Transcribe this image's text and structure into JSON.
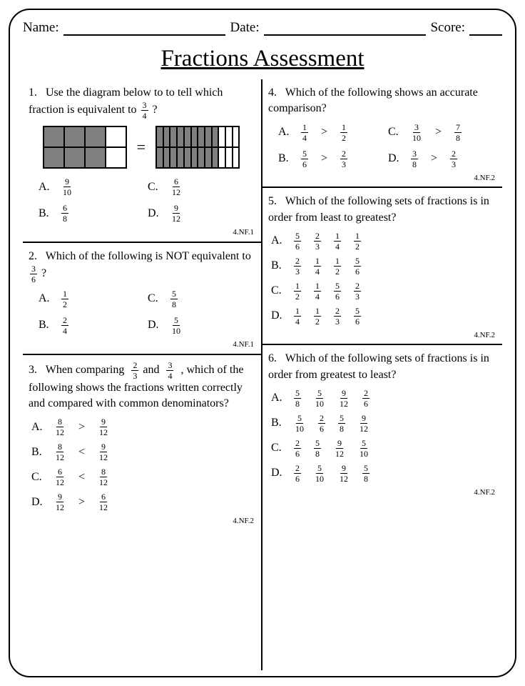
{
  "header": {
    "name": "Name:",
    "date": "Date:",
    "score": "Score:"
  },
  "title": "Fractions Assessment",
  "diagram": {
    "gridA": {
      "cols": 4,
      "rows": 2,
      "filled": [
        0,
        1,
        2,
        4,
        5,
        6
      ]
    },
    "gridB": {
      "cols": 12,
      "rows": 2,
      "filledCols": 9
    },
    "eq": "="
  },
  "questions": {
    "q1": {
      "num": "1.",
      "text": "Use the diagram below to to tell which fraction is equivalent to",
      "frac": {
        "n": "3",
        "d": "4"
      },
      "tail": "?",
      "standard": "4.NF.1",
      "opts": {
        "A": {
          "n": "9",
          "d": "10"
        },
        "C": {
          "n": "6",
          "d": "12"
        },
        "B": {
          "n": "6",
          "d": "8"
        },
        "D": {
          "n": "9",
          "d": "12"
        }
      }
    },
    "q2": {
      "num": "2.",
      "text": "Which of the following is NOT equivalent to",
      "frac": {
        "n": "3",
        "d": "6"
      },
      "tail": "?",
      "standard": "4.NF.1",
      "opts": {
        "A": {
          "n": "1",
          "d": "2"
        },
        "C": {
          "n": "5",
          "d": "8"
        },
        "B": {
          "n": "2",
          "d": "4"
        },
        "D": {
          "n": "5",
          "d": "10"
        }
      }
    },
    "q3": {
      "num": "3.",
      "pre": "When comparing",
      "f1": {
        "n": "2",
        "d": "3"
      },
      "mid": "and",
      "f2": {
        "n": "3",
        "d": "4"
      },
      "post": ", which of the following shows the fractions written correctly and compared with common denominators?",
      "standard": "4.NF.2",
      "opts": {
        "A": {
          "l": {
            "n": "8",
            "d": "12"
          },
          "s": ">",
          "r": {
            "n": "9",
            "d": "12"
          }
        },
        "B": {
          "l": {
            "n": "8",
            "d": "12"
          },
          "s": "<",
          "r": {
            "n": "9",
            "d": "12"
          }
        },
        "C": {
          "l": {
            "n": "6",
            "d": "12"
          },
          "s": "<",
          "r": {
            "n": "8",
            "d": "12"
          }
        },
        "D": {
          "l": {
            "n": "9",
            "d": "12"
          },
          "s": ">",
          "r": {
            "n": "6",
            "d": "12"
          }
        }
      }
    },
    "q4": {
      "num": "4.",
      "text": "Which of the following shows an accurate comparison?",
      "standard": "4.NF.2",
      "opts": {
        "A": {
          "l": {
            "n": "1",
            "d": "4"
          },
          "s": ">",
          "r": {
            "n": "1",
            "d": "2"
          }
        },
        "C": {
          "l": {
            "n": "3",
            "d": "10"
          },
          "s": ">",
          "r": {
            "n": "7",
            "d": "8"
          }
        },
        "B": {
          "l": {
            "n": "5",
            "d": "6"
          },
          "s": ">",
          "r": {
            "n": "2",
            "d": "3"
          }
        },
        "D": {
          "l": {
            "n": "3",
            "d": "8"
          },
          "s": ">",
          "r": {
            "n": "2",
            "d": "3"
          }
        }
      }
    },
    "q5": {
      "num": "5.",
      "text": "Which of the following sets of fractions is in order from least to greatest?",
      "standard": "4.NF.2",
      "opts": {
        "A": [
          {
            "n": "5",
            "d": "6"
          },
          {
            "n": "2",
            "d": "3"
          },
          {
            "n": "1",
            "d": "4"
          },
          {
            "n": "1",
            "d": "2"
          }
        ],
        "B": [
          {
            "n": "2",
            "d": "3"
          },
          {
            "n": "1",
            "d": "4"
          },
          {
            "n": "1",
            "d": "2"
          },
          {
            "n": "5",
            "d": "6"
          }
        ],
        "C": [
          {
            "n": "1",
            "d": "2"
          },
          {
            "n": "1",
            "d": "4"
          },
          {
            "n": "5",
            "d": "6"
          },
          {
            "n": "2",
            "d": "3"
          }
        ],
        "D": [
          {
            "n": "1",
            "d": "4"
          },
          {
            "n": "1",
            "d": "2"
          },
          {
            "n": "2",
            "d": "3"
          },
          {
            "n": "5",
            "d": "6"
          }
        ]
      }
    },
    "q6": {
      "num": "6.",
      "text": "Which of the following sets of fractions is in order from greatest to least?",
      "standard": "4.NF.2",
      "opts": {
        "A": [
          {
            "n": "5",
            "d": "8"
          },
          {
            "n": "5",
            "d": "10"
          },
          {
            "n": "9",
            "d": "12"
          },
          {
            "n": "2",
            "d": "6"
          }
        ],
        "B": [
          {
            "n": "5",
            "d": "10"
          },
          {
            "n": "2",
            "d": "6"
          },
          {
            "n": "5",
            "d": "8"
          },
          {
            "n": "9",
            "d": "12"
          }
        ],
        "C": [
          {
            "n": "2",
            "d": "6"
          },
          {
            "n": "5",
            "d": "8"
          },
          {
            "n": "9",
            "d": "12"
          },
          {
            "n": "5",
            "d": "10"
          }
        ],
        "D": [
          {
            "n": "2",
            "d": "6"
          },
          {
            "n": "5",
            "d": "10"
          },
          {
            "n": "9",
            "d": "12"
          },
          {
            "n": "5",
            "d": "8"
          }
        ]
      }
    }
  }
}
